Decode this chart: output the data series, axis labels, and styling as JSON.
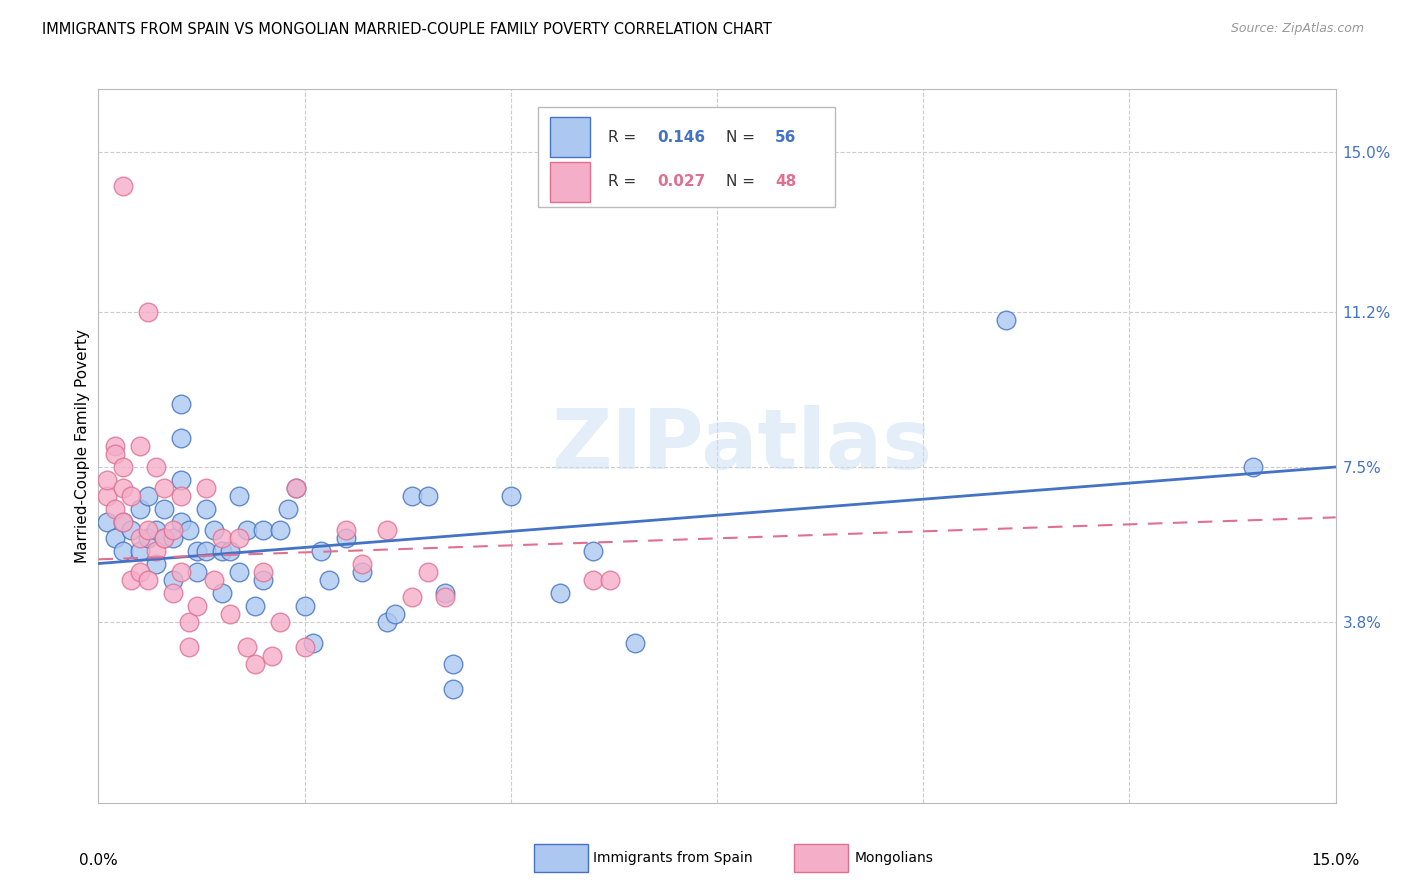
{
  "title": "IMMIGRANTS FROM SPAIN VS MONGOLIAN MARRIED-COUPLE FAMILY POVERTY CORRELATION CHART",
  "source": "Source: ZipAtlas.com",
  "ylabel": "Married-Couple Family Poverty",
  "yticks": [
    "15.0%",
    "11.2%",
    "7.5%",
    "3.8%"
  ],
  "ytick_vals": [
    0.15,
    0.112,
    0.075,
    0.038
  ],
  "xrange": [
    0.0,
    0.15
  ],
  "yrange": [
    -0.005,
    0.165
  ],
  "blue_color": "#adc8f0",
  "pink_color": "#f5aec8",
  "line_blue": "#4472c4",
  "line_pink": "#e07090",
  "blue_line_y0": 0.052,
  "blue_line_y1": 0.075,
  "pink_line_y0": 0.053,
  "pink_line_y1": 0.063,
  "blue_scatter": [
    [
      0.001,
      0.062
    ],
    [
      0.002,
      0.058
    ],
    [
      0.003,
      0.055
    ],
    [
      0.003,
      0.062
    ],
    [
      0.004,
      0.06
    ],
    [
      0.005,
      0.055
    ],
    [
      0.005,
      0.065
    ],
    [
      0.006,
      0.058
    ],
    [
      0.006,
      0.068
    ],
    [
      0.007,
      0.06
    ],
    [
      0.007,
      0.052
    ],
    [
      0.008,
      0.058
    ],
    [
      0.008,
      0.065
    ],
    [
      0.009,
      0.048
    ],
    [
      0.009,
      0.058
    ],
    [
      0.01,
      0.062
    ],
    [
      0.01,
      0.072
    ],
    [
      0.01,
      0.082
    ],
    [
      0.01,
      0.09
    ],
    [
      0.011,
      0.06
    ],
    [
      0.012,
      0.055
    ],
    [
      0.012,
      0.05
    ],
    [
      0.013,
      0.055
    ],
    [
      0.013,
      0.065
    ],
    [
      0.014,
      0.06
    ],
    [
      0.015,
      0.055
    ],
    [
      0.015,
      0.045
    ],
    [
      0.016,
      0.055
    ],
    [
      0.017,
      0.068
    ],
    [
      0.017,
      0.05
    ],
    [
      0.018,
      0.06
    ],
    [
      0.019,
      0.042
    ],
    [
      0.02,
      0.06
    ],
    [
      0.02,
      0.048
    ],
    [
      0.022,
      0.06
    ],
    [
      0.023,
      0.065
    ],
    [
      0.024,
      0.07
    ],
    [
      0.025,
      0.042
    ],
    [
      0.026,
      0.033
    ],
    [
      0.027,
      0.055
    ],
    [
      0.028,
      0.048
    ],
    [
      0.03,
      0.058
    ],
    [
      0.032,
      0.05
    ],
    [
      0.035,
      0.038
    ],
    [
      0.036,
      0.04
    ],
    [
      0.038,
      0.068
    ],
    [
      0.04,
      0.068
    ],
    [
      0.042,
      0.045
    ],
    [
      0.043,
      0.028
    ],
    [
      0.043,
      0.022
    ],
    [
      0.05,
      0.068
    ],
    [
      0.056,
      0.045
    ],
    [
      0.06,
      0.055
    ],
    [
      0.065,
      0.033
    ],
    [
      0.11,
      0.11
    ],
    [
      0.14,
      0.075
    ]
  ],
  "pink_scatter": [
    [
      0.001,
      0.068
    ],
    [
      0.001,
      0.072
    ],
    [
      0.002,
      0.08
    ],
    [
      0.002,
      0.065
    ],
    [
      0.002,
      0.078
    ],
    [
      0.003,
      0.07
    ],
    [
      0.003,
      0.075
    ],
    [
      0.003,
      0.062
    ],
    [
      0.003,
      0.142
    ],
    [
      0.004,
      0.068
    ],
    [
      0.004,
      0.048
    ],
    [
      0.005,
      0.058
    ],
    [
      0.005,
      0.05
    ],
    [
      0.005,
      0.08
    ],
    [
      0.006,
      0.06
    ],
    [
      0.006,
      0.048
    ],
    [
      0.006,
      0.112
    ],
    [
      0.007,
      0.055
    ],
    [
      0.007,
      0.075
    ],
    [
      0.008,
      0.07
    ],
    [
      0.008,
      0.058
    ],
    [
      0.009,
      0.045
    ],
    [
      0.009,
      0.06
    ],
    [
      0.01,
      0.068
    ],
    [
      0.01,
      0.05
    ],
    [
      0.011,
      0.038
    ],
    [
      0.011,
      0.032
    ],
    [
      0.012,
      0.042
    ],
    [
      0.013,
      0.07
    ],
    [
      0.014,
      0.048
    ],
    [
      0.015,
      0.058
    ],
    [
      0.016,
      0.04
    ],
    [
      0.017,
      0.058
    ],
    [
      0.018,
      0.032
    ],
    [
      0.019,
      0.028
    ],
    [
      0.02,
      0.05
    ],
    [
      0.021,
      0.03
    ],
    [
      0.022,
      0.038
    ],
    [
      0.024,
      0.07
    ],
    [
      0.025,
      0.032
    ],
    [
      0.03,
      0.06
    ],
    [
      0.032,
      0.052
    ],
    [
      0.035,
      0.06
    ],
    [
      0.038,
      0.044
    ],
    [
      0.04,
      0.05
    ],
    [
      0.042,
      0.044
    ],
    [
      0.06,
      0.048
    ],
    [
      0.062,
      0.048
    ]
  ]
}
